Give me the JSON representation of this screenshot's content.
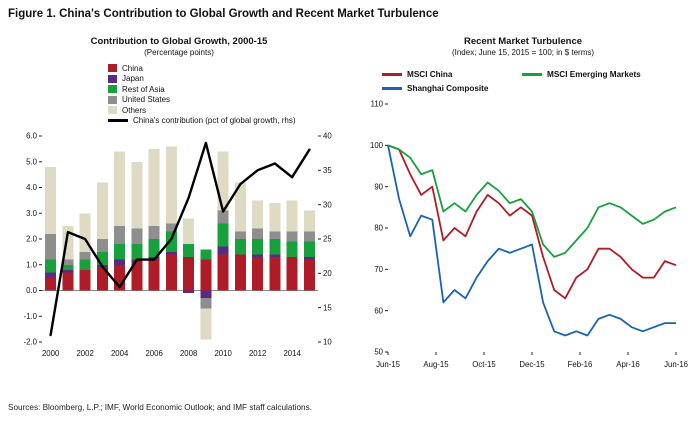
{
  "figure_title": "Figure 1. China's Contribution to Global Growth and Recent Market Turbulence",
  "footer": "Sources: Bloomberg, L.P.; IMF, World Economic Outlook; and IMF staff calculations.",
  "chart_data": [
    {
      "type": "bar",
      "title": "Contribution to Global Growth, 2000-15",
      "subtitle": "(Percentage points)",
      "categories": [
        "2000",
        "2001",
        "2002",
        "2003",
        "2004",
        "2005",
        "2006",
        "2007",
        "2008",
        "2009",
        "2010",
        "2011",
        "2012",
        "2013",
        "2014",
        "2015"
      ],
      "series": [
        {
          "name": "China",
          "color": "#AE1C28",
          "values": [
            0.5,
            0.7,
            0.8,
            0.9,
            1.0,
            1.1,
            1.2,
            1.4,
            1.3,
            1.2,
            1.4,
            1.4,
            1.3,
            1.3,
            1.3,
            1.2
          ]
        },
        {
          "name": "Japan",
          "color": "#582C83",
          "values": [
            0.2,
            0.1,
            0.0,
            0.1,
            0.2,
            0.1,
            0.1,
            0.1,
            -0.1,
            -0.3,
            0.3,
            0.0,
            0.1,
            0.1,
            0.0,
            0.1
          ]
        },
        {
          "name": "Rest of Asia",
          "color": "#18A03C",
          "values": [
            0.5,
            0.2,
            0.4,
            0.5,
            0.6,
            0.6,
            0.7,
            0.8,
            0.5,
            0.4,
            0.9,
            0.6,
            0.6,
            0.6,
            0.6,
            0.6
          ]
        },
        {
          "name": "United States",
          "color": "#8E8E8E",
          "values": [
            1.0,
            0.2,
            0.3,
            0.5,
            0.7,
            0.6,
            0.5,
            0.3,
            0.0,
            -0.4,
            0.5,
            0.3,
            0.4,
            0.3,
            0.4,
            0.4
          ]
        },
        {
          "name": "Others",
          "color": "#DEDAC3",
          "values": [
            2.6,
            1.3,
            1.5,
            2.2,
            2.9,
            2.6,
            3.0,
            3.0,
            1.0,
            -1.2,
            2.3,
            1.9,
            1.1,
            1.1,
            1.2,
            0.8
          ]
        }
      ],
      "line_series": {
        "name": "China's contribution (pct of global growth, rhs)",
        "color": "#000000",
        "axis": "right",
        "values": [
          11,
          26,
          25,
          21,
          18,
          22,
          22,
          25,
          31,
          39,
          29,
          33,
          35,
          36,
          34,
          38
        ]
      },
      "axis_left": {
        "min": -2.0,
        "max": 6.0,
        "step": 1.0,
        "decimals": 1
      },
      "axis_right": {
        "min": 10,
        "max": 40,
        "step": 5,
        "decimals": 0
      },
      "xticks": [
        "2000",
        "2002",
        "2004",
        "2006",
        "2008",
        "2010",
        "2012",
        "2014"
      ],
      "xtick_every": 2
    },
    {
      "type": "line",
      "title": "Recent Market Turbulence",
      "subtitle": "(Index; June 15, 2015 = 100; in $ terms)",
      "series": [
        {
          "name": "MSCI China",
          "color": "#AE1C28",
          "values": [
            100,
            99,
            93,
            88,
            90,
            77,
            80,
            78,
            84,
            88,
            86,
            83,
            85,
            83,
            73,
            65,
            63,
            68,
            70,
            75,
            75,
            73,
            70,
            68,
            68,
            72,
            71
          ]
        },
        {
          "name": "Shanghai Composite",
          "color": "#1B62B5",
          "values": [
            100,
            87,
            78,
            83,
            82,
            62,
            65,
            63,
            68,
            72,
            75,
            74,
            75,
            76,
            62,
            55,
            54,
            55,
            54,
            58,
            59,
            58,
            56,
            55,
            56,
            57,
            57
          ]
        },
        {
          "name": "MSCI Emerging Markets",
          "color": "#18A03C",
          "values": [
            100,
            99,
            97,
            93,
            94,
            84,
            86,
            84,
            88,
            91,
            89,
            86,
            87,
            84,
            76,
            73,
            74,
            77,
            80,
            85,
            86,
            85,
            83,
            81,
            82,
            84,
            85
          ]
        }
      ],
      "legend_order": [
        0,
        2,
        1
      ],
      "axis_y": {
        "min": 50,
        "max": 110,
        "step": 10,
        "decimals": 0
      },
      "xticks": [
        "Jun-15",
        "Aug-15",
        "Oct-15",
        "Dec-15",
        "Feb-16",
        "Apr-16",
        "Jun-16"
      ]
    }
  ]
}
